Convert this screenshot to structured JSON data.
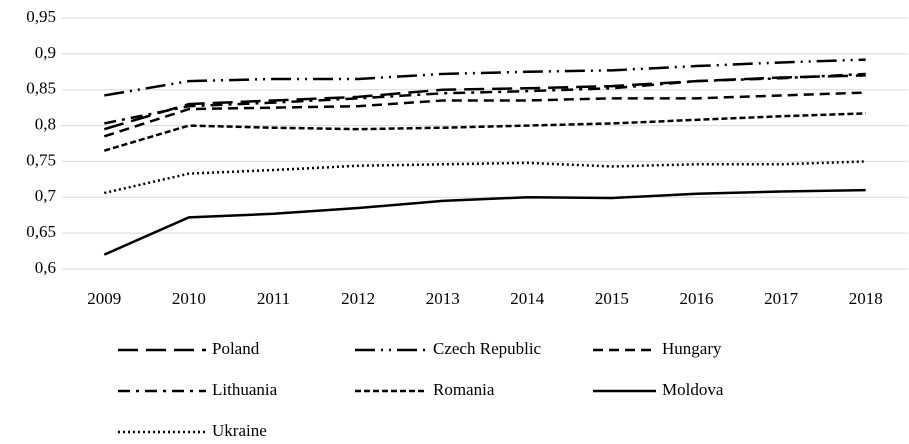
{
  "chart_data": {
    "type": "line",
    "categories": [
      "2009",
      "2010",
      "2011",
      "2012",
      "2013",
      "2014",
      "2015",
      "2016",
      "2017",
      "2018"
    ],
    "ylim": [
      0.6,
      0.95
    ],
    "yticks": [
      {
        "value": 0.6,
        "label": "0,6"
      },
      {
        "value": 0.65,
        "label": "0,65"
      },
      {
        "value": 0.7,
        "label": "0,7"
      },
      {
        "value": 0.75,
        "label": "0,75"
      },
      {
        "value": 0.8,
        "label": "0,8"
      },
      {
        "value": 0.85,
        "label": "0,85"
      },
      {
        "value": 0.9,
        "label": "0,9"
      },
      {
        "value": 0.95,
        "label": "0,95"
      }
    ],
    "grid": true,
    "legend": "bottom",
    "series": [
      {
        "name": "Poland",
        "color": "#000000",
        "dash": "20,8",
        "values": [
          0.795,
          0.83,
          0.835,
          0.84,
          0.85,
          0.852,
          0.855,
          0.862,
          0.867,
          0.87
        ]
      },
      {
        "name": "Czech Republic",
        "color": "#000000",
        "dash": "20,6,2,6,2,6",
        "values": [
          0.842,
          0.862,
          0.865,
          0.865,
          0.872,
          0.875,
          0.877,
          0.883,
          0.888,
          0.892
        ]
      },
      {
        "name": "Hungary",
        "color": "#000000",
        "dash": "10,6",
        "values": [
          0.785,
          0.823,
          0.825,
          0.827,
          0.835,
          0.835,
          0.838,
          0.838,
          0.842,
          0.846
        ]
      },
      {
        "name": "Lithuania",
        "color": "#000000",
        "dash": "12,6,3,6",
        "values": [
          0.803,
          0.827,
          0.832,
          0.838,
          0.845,
          0.848,
          0.852,
          0.862,
          0.866,
          0.872
        ]
      },
      {
        "name": "Romania",
        "color": "#000000",
        "dash": "6,3",
        "values": [
          0.765,
          0.8,
          0.797,
          0.795,
          0.797,
          0.8,
          0.803,
          0.808,
          0.813,
          0.817
        ]
      },
      {
        "name": "Moldova",
        "color": "#000000",
        "dash": "none",
        "values": [
          0.62,
          0.672,
          0.677,
          0.685,
          0.695,
          0.7,
          0.699,
          0.705,
          0.708,
          0.71
        ]
      },
      {
        "name": "Ukraine",
        "color": "#000000",
        "dash": "2,3",
        "values": [
          0.706,
          0.733,
          0.738,
          0.744,
          0.746,
          0.748,
          0.743,
          0.746,
          0.746,
          0.75
        ]
      }
    ]
  }
}
